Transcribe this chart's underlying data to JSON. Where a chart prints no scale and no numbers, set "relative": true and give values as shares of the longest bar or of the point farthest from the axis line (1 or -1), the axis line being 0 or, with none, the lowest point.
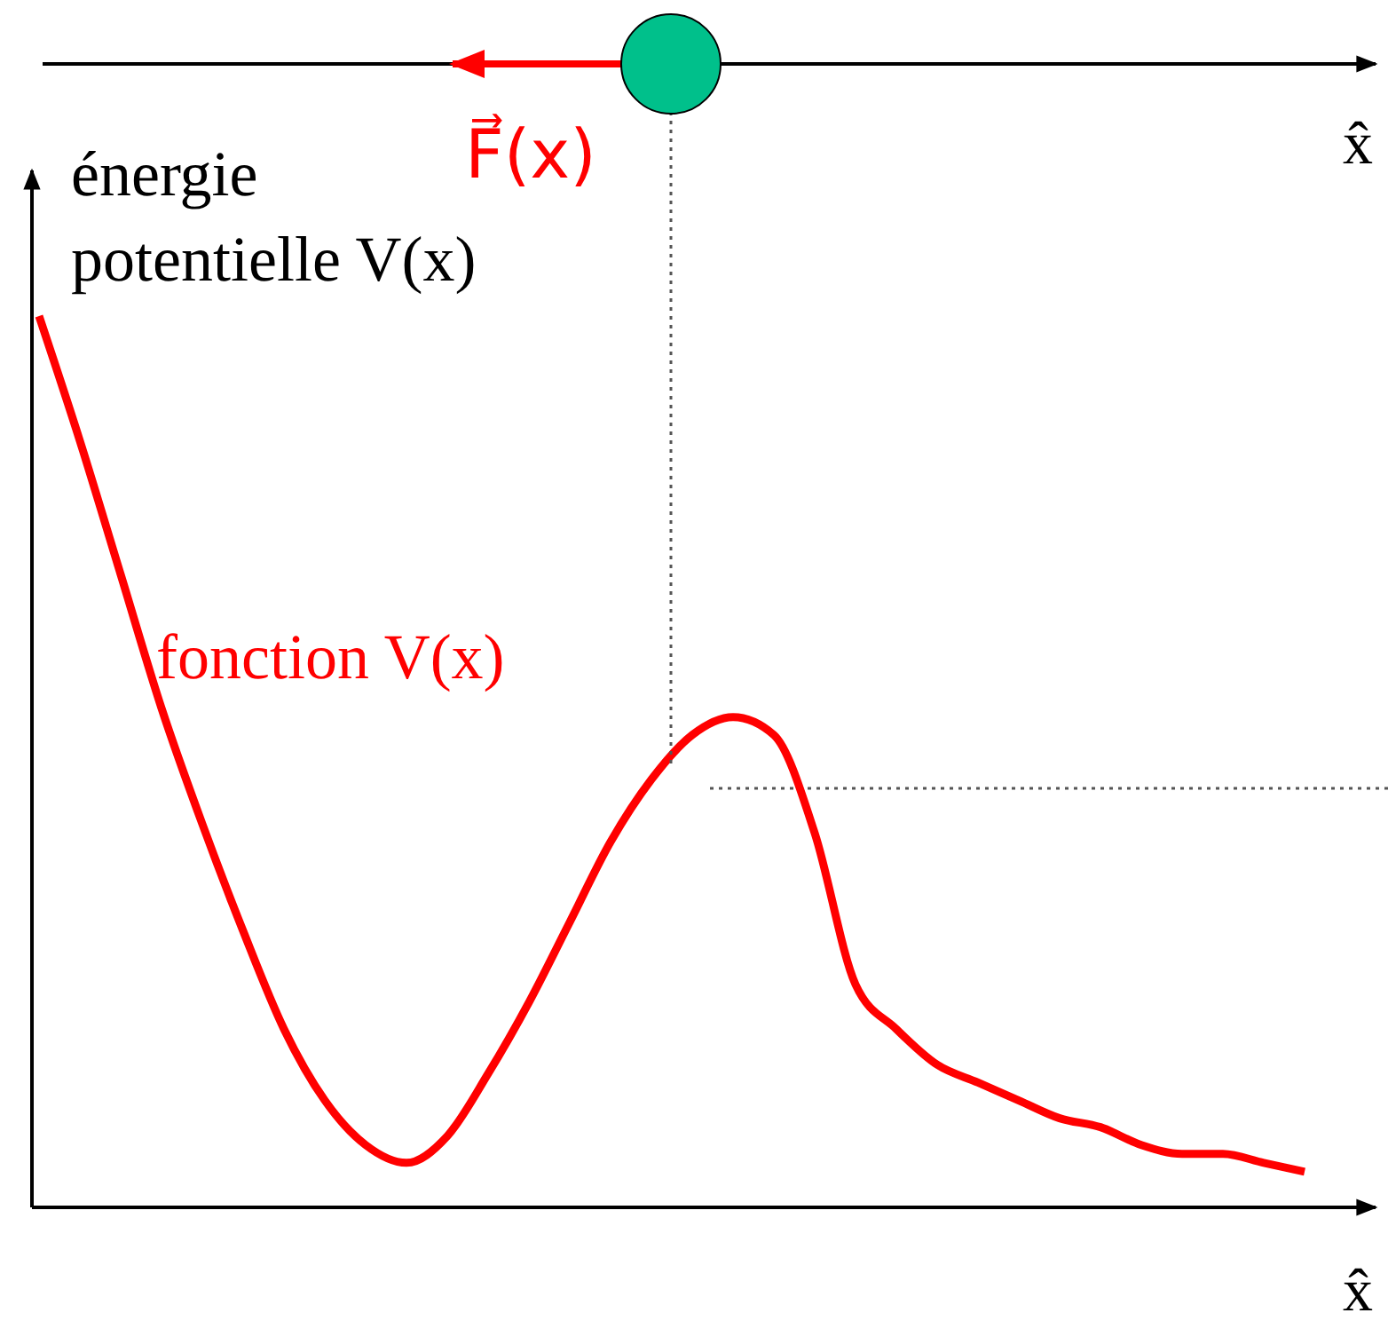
{
  "chart_data": {
    "type": "line",
    "relative": true,
    "ylabel": "énergie potentielle V(x)",
    "xlabel": "x̂",
    "categories": [
      null,
      null,
      null,
      null,
      null,
      null,
      null,
      null,
      null,
      null,
      null,
      null,
      null,
      null,
      null,
      null,
      null,
      null,
      null,
      null,
      null,
      null,
      null,
      null,
      null,
      null,
      null,
      null,
      null,
      null,
      null,
      null
    ],
    "series": [
      {
        "color": "#ff0000",
        "values": [
          1.0,
          0.86,
          0.71,
          0.56,
          0.43,
          0.31,
          0.2,
          0.12,
          0.07,
          0.05,
          0.08,
          0.15,
          0.23,
          0.32,
          0.41,
          0.48,
          0.53,
          0.55,
          0.53,
          0.42,
          0.25,
          0.2,
          0.16,
          0.14,
          0.12,
          0.1,
          0.09,
          0.07,
          0.06,
          0.06,
          0.05,
          0.04
        ]
      }
    ],
    "ref_lines": [
      {
        "axis": "y",
        "value": 0.47,
        "line_style": "dotted",
        "color": "#555555"
      }
    ],
    "annotations": [
      "fonction V(x)",
      "F⃗(x)",
      "x̂"
    ],
    "line_style": "solid"
  }
}
